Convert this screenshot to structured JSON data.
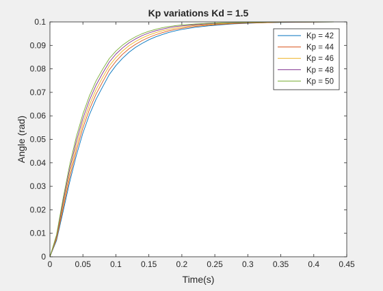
{
  "chart_data": {
    "type": "line",
    "title": "Kp variations Kd = 1.5",
    "xlabel": "Time(s)",
    "ylabel": "Angle (rad)",
    "xlim": [
      0,
      0.45
    ],
    "ylim": [
      0,
      0.1
    ],
    "xticks": [
      "0",
      "0.05",
      "0.1",
      "0.15",
      "0.2",
      "0.25",
      "0.3",
      "0.35",
      "0.4",
      "0.45"
    ],
    "yticks": [
      "0",
      "0.01",
      "0.02",
      "0.03",
      "0.04",
      "0.05",
      "0.06",
      "0.07",
      "0.08",
      "0.09",
      "0.1"
    ],
    "grid": false,
    "legend_position": "top-right",
    "x": [
      0,
      0.01,
      0.02,
      0.03,
      0.04,
      0.05,
      0.06,
      0.07,
      0.08,
      0.09,
      0.1,
      0.11,
      0.12,
      0.13,
      0.14,
      0.15,
      0.16,
      0.17,
      0.18,
      0.19,
      0.2,
      0.22,
      0.24,
      0.26,
      0.28,
      0.3,
      0.33,
      0.36,
      0.4,
      0.43
    ],
    "series": [
      {
        "name": "Kp = 42",
        "color": "#0072bd",
        "values": [
          0,
          0.0069,
          0.0193,
          0.0319,
          0.0431,
          0.0527,
          0.0606,
          0.0671,
          0.0724,
          0.0776,
          0.0814,
          0.0845,
          0.0871,
          0.0892,
          0.0909,
          0.0924,
          0.0936,
          0.0946,
          0.0955,
          0.0962,
          0.0968,
          0.0977,
          0.0983,
          0.0988,
          0.0992,
          0.0994,
          0.0997,
          0.0998,
          0.0999,
          0.1
        ]
      },
      {
        "name": "Kp = 44",
        "color": "#d95319",
        "values": [
          0,
          0.0075,
          0.0207,
          0.0337,
          0.0452,
          0.0549,
          0.0628,
          0.0693,
          0.0745,
          0.0796,
          0.0832,
          0.0862,
          0.0886,
          0.0905,
          0.0921,
          0.0934,
          0.0945,
          0.0954,
          0.0962,
          0.0968,
          0.0973,
          0.0981,
          0.0986,
          0.099,
          0.0993,
          0.0995,
          0.0997,
          0.0999,
          0.0999,
          0.1
        ]
      },
      {
        "name": "Kp = 46",
        "color": "#edb120",
        "values": [
          0,
          0.0081,
          0.0221,
          0.0356,
          0.0472,
          0.0569,
          0.0648,
          0.0712,
          0.0764,
          0.0813,
          0.0848,
          0.0876,
          0.0899,
          0.0917,
          0.0932,
          0.0944,
          0.0954,
          0.0962,
          0.0968,
          0.0974,
          0.0978,
          0.0985,
          0.0989,
          0.0993,
          0.0995,
          0.0996,
          0.0998,
          0.0999,
          0.1,
          0.1
        ]
      },
      {
        "name": "Kp = 48",
        "color": "#7e2f8e",
        "values": [
          0,
          0.0087,
          0.0235,
          0.0374,
          0.0492,
          0.0589,
          0.0668,
          0.0731,
          0.0782,
          0.0829,
          0.0863,
          0.0889,
          0.0911,
          0.0928,
          0.0942,
          0.0953,
          0.0962,
          0.0969,
          0.0975,
          0.098,
          0.0983,
          0.0988,
          0.0992,
          0.0995,
          0.0996,
          0.0997,
          0.0999,
          0.0999,
          0.1,
          0.1
        ]
      },
      {
        "name": "Kp = 50",
        "color": "#77ac30",
        "values": [
          0,
          0.0093,
          0.0249,
          0.0392,
          0.0511,
          0.0608,
          0.0686,
          0.0749,
          0.0799,
          0.0844,
          0.0876,
          0.0901,
          0.0921,
          0.0937,
          0.095,
          0.096,
          0.0968,
          0.0975,
          0.098,
          0.0984,
          0.0987,
          0.0991,
          0.0994,
          0.0996,
          0.0997,
          0.0998,
          0.0999,
          0.1,
          0.1,
          0.1
        ]
      }
    ]
  }
}
